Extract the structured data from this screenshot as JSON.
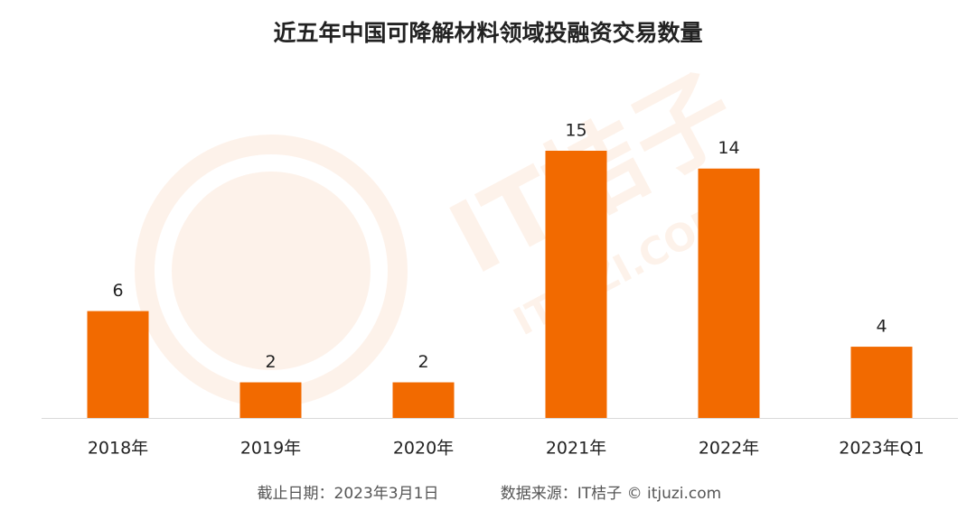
{
  "chart_data": {
    "type": "bar",
    "title": "近五年中国可降解材料领域投融资交易数量",
    "categories": [
      "2018年",
      "2019年",
      "2020年",
      "2021年",
      "2022年",
      "2023年Q1"
    ],
    "values": [
      6,
      2,
      2,
      15,
      14,
      4
    ],
    "color": "#f26a00",
    "ylim": [
      0,
      15
    ],
    "footnote": [
      "截止日期：2023年3月1日",
      "数据来源：IT桔子 © itjuzi.com"
    ],
    "watermark": [
      "IT桔子",
      "ITJUZI.COM"
    ]
  }
}
